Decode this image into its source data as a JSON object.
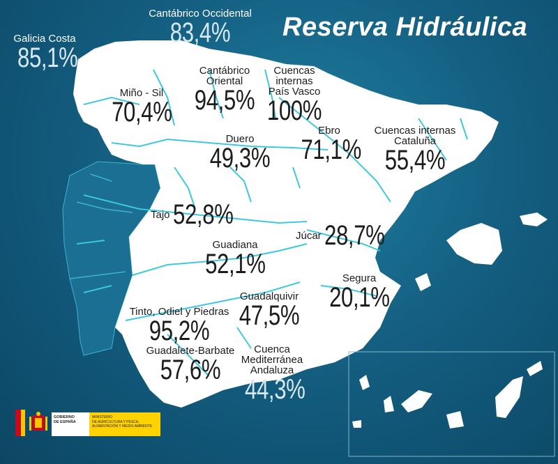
{
  "title": "Reserva Hidráulica",
  "regions": [
    {
      "id": "galicia-costa",
      "name": "Galicia Costa",
      "value": "85,1%"
    },
    {
      "id": "cantabrico-occidental",
      "name": "Cantábrico Occidental",
      "value": "83,4%"
    },
    {
      "id": "mino-sil",
      "name": "Miño - Sil",
      "value": "70,4%"
    },
    {
      "id": "cantabrico-oriental",
      "name": "Cantábrico\nOriental",
      "value": "94,5%"
    },
    {
      "id": "cuencas-internas-pais-vasco",
      "name": "Cuencas\ninternas\nPaís Vasco",
      "value": "100%"
    },
    {
      "id": "ebro",
      "name": "Ebro",
      "value": "71,1%"
    },
    {
      "id": "cuencas-internas-cataluna",
      "name": "Cuencas internas\nCataluña",
      "value": "55,4%"
    },
    {
      "id": "duero",
      "name": "Duero",
      "value": "49,3%"
    },
    {
      "id": "tajo",
      "name": "Tajo",
      "value": "52,8%"
    },
    {
      "id": "jucar",
      "name": "Júcar",
      "value": "28,7%"
    },
    {
      "id": "guadiana",
      "name": "Guadiana",
      "value": "52,1%"
    },
    {
      "id": "segura",
      "name": "Segura",
      "value": "20,1%"
    },
    {
      "id": "guadalquivir",
      "name": "Guadalquivir",
      "value": "47,5%"
    },
    {
      "id": "tinto-odiel-piedras",
      "name": "Tinto, Odiel y Piedras",
      "value": "95,2%"
    },
    {
      "id": "guadalete-barbate",
      "name": "Guadalete-Barbate",
      "value": "57,6%"
    },
    {
      "id": "cuenca-mediterranea-andaluza",
      "name": "Cuenca\nMediterránea\nAndaluza",
      "value": "44,3%"
    }
  ],
  "logo": {
    "gobierno": "GOBIERNO\nDE ESPAÑA",
    "ministerio": "MINISTERIO\nDE AGRICULTURA Y PESCA,\nALIMENTACIÓN Y MEDIO AMBIENTE"
  },
  "colors": {
    "sea": "#145f82",
    "land": "#ffffff",
    "river": "#3cc8de",
    "text": "#1c1c1c"
  }
}
